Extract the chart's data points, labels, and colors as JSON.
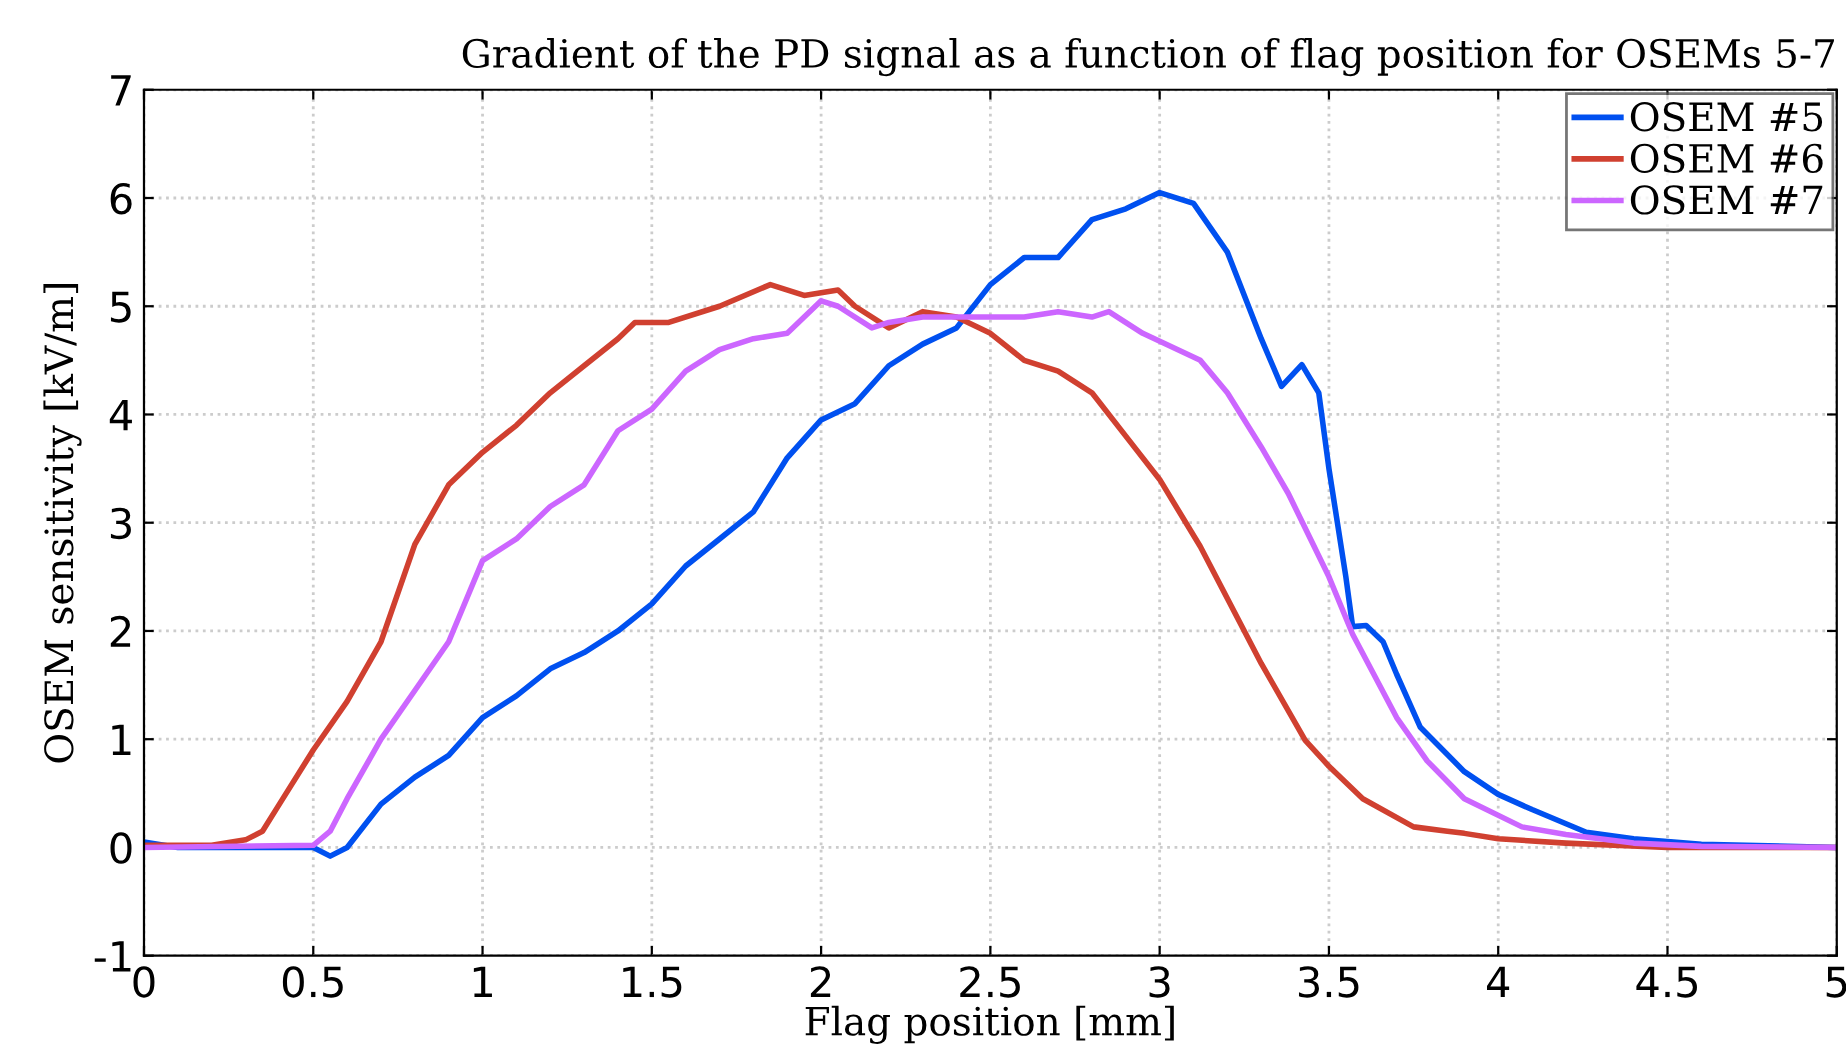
{
  "chart_data": {
    "type": "line",
    "title": "Gradient of the PD signal as a function of flag position for OSEMs 5-7",
    "xlabel": "Flag position [mm]",
    "ylabel": "OSEM sensitivity [kV/m]",
    "xlim": [
      0,
      5
    ],
    "xticks": [
      0,
      0.5,
      1,
      1.5,
      2,
      2.5,
      3,
      3.5,
      4,
      4.5,
      5
    ],
    "ylim": [
      -1,
      7
    ],
    "yticks": [
      -1,
      0,
      1,
      2,
      3,
      4,
      5,
      6,
      7
    ],
    "grid": true,
    "legend": "top right",
    "marker": "none",
    "line_style": "solid",
    "series": [
      {
        "name": "OSEM #5",
        "color": "#0050f0",
        "x": [
          0,
          0.1,
          0.2,
          0.3,
          0.4,
          0.5,
          0.55,
          0.6,
          0.7,
          0.8,
          0.9,
          1.0,
          1.1,
          1.2,
          1.3,
          1.4,
          1.5,
          1.6,
          1.7,
          1.8,
          1.9,
          2.0,
          2.1,
          2.2,
          2.3,
          2.4,
          2.5,
          2.6,
          2.7,
          2.8,
          2.9,
          3.0,
          3.1,
          3.2,
          3.3,
          3.36,
          3.42,
          3.47,
          3.5,
          3.55,
          3.57,
          3.61,
          3.66,
          3.7,
          3.77,
          3.9,
          4.0,
          4.1,
          4.26,
          4.4,
          4.6,
          5.0
        ],
        "values": [
          0.05,
          0.0,
          0.0,
          0.0,
          0.0,
          0.0,
          -0.08,
          0.0,
          0.4,
          0.65,
          0.85,
          1.2,
          1.4,
          1.65,
          1.8,
          2.0,
          2.25,
          2.6,
          2.85,
          3.1,
          3.6,
          3.95,
          4.1,
          4.45,
          4.65,
          4.8,
          5.2,
          5.45,
          5.45,
          5.8,
          5.9,
          6.05,
          5.95,
          5.5,
          4.7,
          4.26,
          4.46,
          4.2,
          3.5,
          2.5,
          2.04,
          2.05,
          1.9,
          1.6,
          1.11,
          0.7,
          0.49,
          0.35,
          0.14,
          0.08,
          0.03,
          0.0
        ]
      },
      {
        "name": "OSEM #6",
        "color": "#d04030",
        "x": [
          0,
          0.2,
          0.3,
          0.35,
          0.4,
          0.5,
          0.6,
          0.7,
          0.8,
          0.9,
          1.0,
          1.1,
          1.2,
          1.3,
          1.4,
          1.45,
          1.55,
          1.7,
          1.85,
          1.95,
          2.05,
          2.1,
          2.2,
          2.3,
          2.4,
          2.5,
          2.6,
          2.7,
          2.8,
          2.9,
          3.0,
          3.12,
          3.2,
          3.3,
          3.43,
          3.5,
          3.6,
          3.75,
          3.85,
          3.9,
          4.0,
          4.2,
          4.5,
          5.0
        ],
        "values": [
          0.02,
          0.02,
          0.07,
          0.15,
          0.4,
          0.9,
          1.35,
          1.9,
          2.8,
          3.35,
          3.65,
          3.9,
          4.2,
          4.45,
          4.7,
          4.85,
          4.85,
          5.0,
          5.2,
          5.1,
          5.15,
          5.0,
          4.8,
          4.95,
          4.9,
          4.75,
          4.5,
          4.4,
          4.2,
          3.8,
          3.4,
          2.78,
          2.3,
          1.7,
          0.99,
          0.75,
          0.45,
          0.19,
          0.15,
          0.13,
          0.08,
          0.04,
          0.0,
          0.0
        ]
      },
      {
        "name": "OSEM #7",
        "color": "#cc66ff",
        "x": [
          0,
          0.5,
          0.55,
          0.6,
          0.7,
          0.8,
          0.9,
          1.0,
          1.1,
          1.2,
          1.3,
          1.4,
          1.5,
          1.6,
          1.7,
          1.8,
          1.9,
          2.0,
          2.05,
          2.15,
          2.2,
          2.3,
          2.5,
          2.6,
          2.7,
          2.8,
          2.85,
          2.95,
          3.12,
          3.2,
          3.3,
          3.38,
          3.5,
          3.57,
          3.7,
          3.79,
          3.9,
          4.07,
          4.2,
          4.4,
          4.6,
          5.0
        ],
        "values": [
          0.0,
          0.02,
          0.15,
          0.45,
          1.0,
          1.45,
          1.9,
          2.65,
          2.85,
          3.15,
          3.35,
          3.85,
          4.05,
          4.4,
          4.6,
          4.7,
          4.75,
          5.05,
          5.0,
          4.8,
          4.85,
          4.9,
          4.9,
          4.9,
          4.95,
          4.9,
          4.95,
          4.75,
          4.5,
          4.2,
          3.7,
          3.27,
          2.5,
          1.97,
          1.2,
          0.8,
          0.45,
          0.19,
          0.12,
          0.04,
          0.01,
          0.0
        ]
      }
    ]
  }
}
